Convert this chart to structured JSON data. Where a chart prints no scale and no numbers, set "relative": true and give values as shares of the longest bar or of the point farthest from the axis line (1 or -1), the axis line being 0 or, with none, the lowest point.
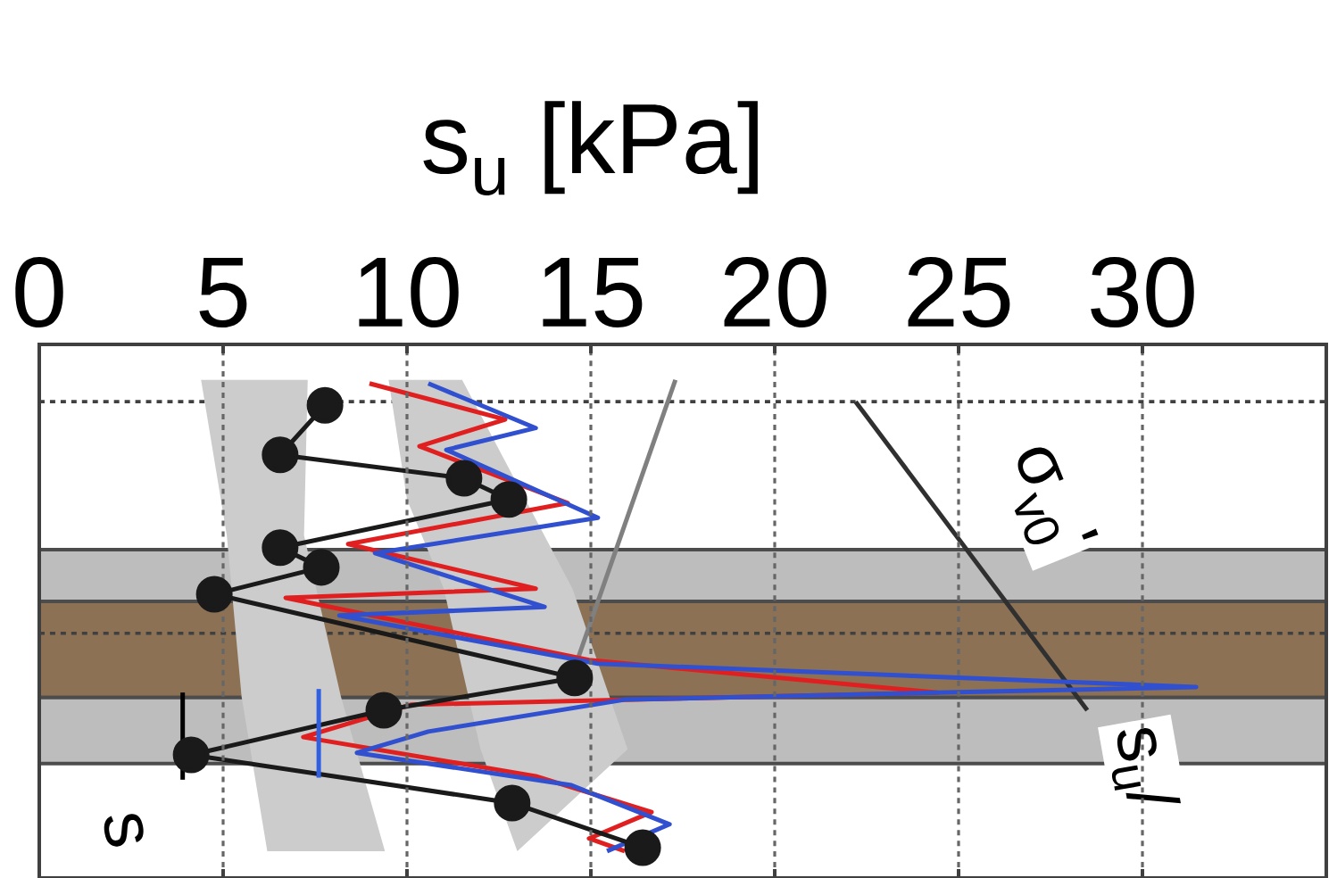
{
  "chart_data": {
    "type": "line",
    "relative": true,
    "xlabel": "s$_{u}$ [kPa]",
    "xlim": [
      0,
      35
    ],
    "xticks": [
      0,
      5,
      10,
      15,
      20,
      25,
      30
    ],
    "grid": "x",
    "bands": [
      {
        "axis": "y",
        "from": -0.405,
        "to": -0.507,
        "color": "#bdbdbd"
      },
      {
        "axis": "y",
        "from": -0.507,
        "to": -0.697,
        "color": "#8c7155"
      },
      {
        "axis": "y",
        "from": -0.697,
        "to": -0.827,
        "color": "#bdbdbd"
      }
    ],
    "ref_lines": [
      {
        "axis": "y",
        "value": -0.113,
        "color": "#404040",
        "line_style": "dashed"
      },
      {
        "axis": "y",
        "value": -0.57,
        "color": "#404040",
        "line_style": "dashed"
      }
    ],
    "series": [
      {
        "type": "area",
        "color": "#cccccc",
        "x": [
          4.4,
          7.3,
          7.2,
          8.2,
          9.4,
          6.2,
          5.5,
          5.1
        ],
        "values": [
          -0.07,
          -0.07,
          -0.377,
          -0.694,
          -1,
          -1,
          -0.694,
          -0.377
        ]
      },
      {
        "type": "area",
        "color": "#cccccc",
        "x": [
          9.5,
          11.5,
          14.5,
          16,
          13,
          12,
          11,
          10
        ],
        "values": [
          -0.07,
          -0.07,
          -0.482,
          -0.799,
          -1,
          -0.799,
          -0.482,
          -0.306
        ]
      },
      {
        "color": "#808080",
        "x": [
          17.3,
          14.6
        ],
        "values": [
          -0.07,
          -0.63
        ]
      },
      {
        "color": "#303030",
        "x": [
          22.2,
          28.5
        ],
        "values": [
          -0.113,
          -0.722
        ]
      },
      {
        "color": "#e02020",
        "x": [
          8.98,
          12.67,
          10.34,
          14.37,
          8.4,
          13.5,
          6.7,
          14.95,
          24.42,
          10.1,
          7.18,
          13.5,
          16.65,
          14.95,
          15.92
        ],
        "values": [
          -0.077,
          -0.148,
          -0.201,
          -0.313,
          -0.394,
          -0.482,
          -0.5,
          -0.623,
          -0.687,
          -0.711,
          -0.775,
          -0.852,
          -0.923,
          -0.975,
          -1
        ]
      },
      {
        "color": "#3050d0",
        "x": [
          10.58,
          13.5,
          11.07,
          15.19,
          9.13,
          13.74,
          8.16,
          15.19,
          31.46,
          15.92,
          10.58,
          8.64,
          14.47,
          17.14,
          15.44
        ],
        "values": [
          -0.077,
          -0.165,
          -0.208,
          -0.342,
          -0.412,
          -0.518,
          -0.535,
          -0.63,
          -0.676,
          -0.701,
          -0.764,
          -0.806,
          -0.87,
          -0.947,
          -1
        ]
      },
      {
        "color": "#1a1a1a",
        "marker": "circle",
        "x": [
          7.77,
          6.55,
          11.55,
          12.77,
          6.55,
          7.67,
          4.76,
          14.56,
          9.37,
          4.13,
          12.86,
          16.41
        ],
        "values": [
          -0.12,
          -0.218,
          -0.264,
          -0.306,
          -0.401,
          -0.44,
          -0.493,
          -0.658,
          -0.722,
          -0.81,
          -0.905,
          -0.993
        ]
      },
      {
        "color": "#000000",
        "x": [
          3.9,
          3.9
        ],
        "values": [
          -0.687,
          -0.859
        ]
      },
      {
        "color": "#3060e0",
        "x": [
          7.6,
          7.6
        ],
        "values": [
          -0.68,
          -0.855
        ]
      }
    ],
    "annotations": [
      "σ$_{v0}$'",
      "s$_{u}$/",
      "s"
    ]
  }
}
